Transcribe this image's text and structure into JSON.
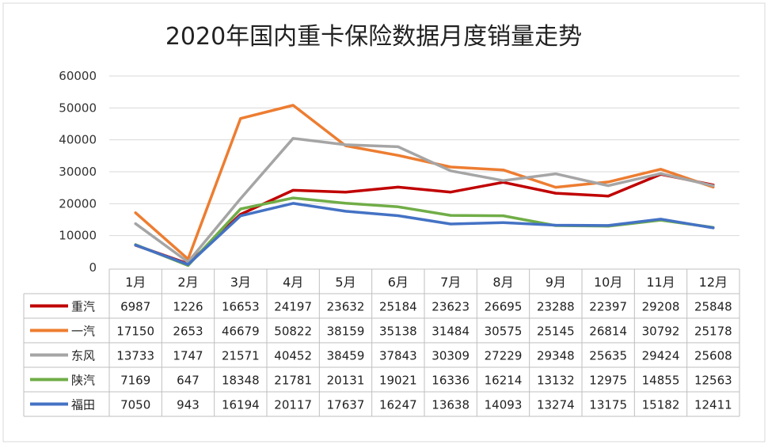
{
  "chart_data": {
    "type": "line",
    "title": "2020年国内重卡保险数据月度销量走势",
    "categories": [
      "1月",
      "2月",
      "3月",
      "4月",
      "5月",
      "6月",
      "7月",
      "8月",
      "9月",
      "10月",
      "11月",
      "12月"
    ],
    "ylim": [
      0,
      60000
    ],
    "yticks": [
      "0",
      "10000",
      "20000",
      "30000",
      "40000",
      "50000",
      "60000"
    ],
    "grid": true,
    "legend_placement": "data-table",
    "series": [
      {
        "name": "重汽",
        "color": "#C00000",
        "values": [
          6987,
          1226,
          16653,
          24197,
          23632,
          25184,
          23623,
          26695,
          23288,
          22397,
          29208,
          25848
        ]
      },
      {
        "name": "一汽",
        "color": "#ED7D31",
        "values": [
          17150,
          2653,
          46679,
          50822,
          38159,
          35138,
          31484,
          30575,
          25145,
          26814,
          30792,
          25178
        ]
      },
      {
        "name": "东风",
        "color": "#A5A5A5",
        "values": [
          13733,
          1747,
          21571,
          40452,
          38459,
          37843,
          30309,
          27229,
          29348,
          25635,
          29424,
          25608
        ]
      },
      {
        "name": "陕汽",
        "color": "#70AD47",
        "values": [
          7169,
          647,
          18348,
          21781,
          20131,
          19021,
          16336,
          16214,
          13132,
          12975,
          14855,
          12563
        ]
      },
      {
        "name": "福田",
        "color": "#4472C4",
        "values": [
          7050,
          943,
          16194,
          20117,
          17637,
          16247,
          13638,
          14093,
          13274,
          13175,
          15182,
          12411
        ]
      }
    ]
  }
}
